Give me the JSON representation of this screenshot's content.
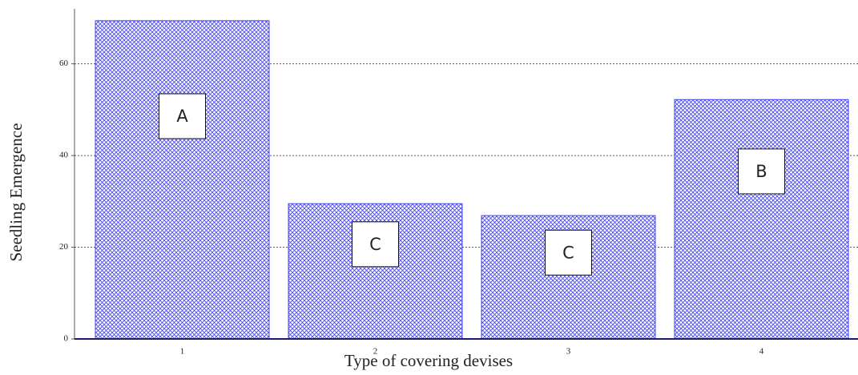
{
  "chart_data": {
    "type": "bar",
    "x_label": "Type of covering devises",
    "y_label": "Seedling Emergence",
    "categories": [
      "1",
      "2",
      "3",
      "4"
    ],
    "values": [
      69.4,
      29.5,
      26.9,
      52.2
    ],
    "annotations": [
      "A",
      "C",
      "C",
      "B"
    ],
    "color": "#3b3bf0",
    "ylim": [
      0,
      72
    ],
    "yticks": [
      0,
      20,
      40,
      60
    ],
    "grid": true
  }
}
